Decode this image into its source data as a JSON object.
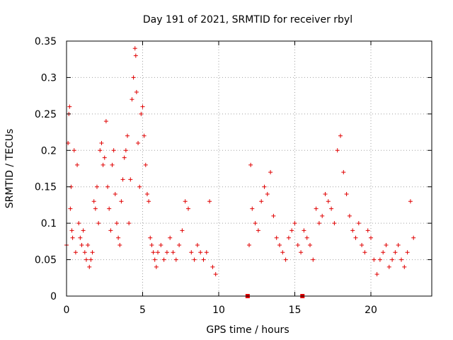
{
  "chart_data": {
    "type": "scatter",
    "title": "Day 191 of 2021, SRMTID for receiver rbyl",
    "xlabel": "GPS time / hours",
    "ylabel": "SRMTID / TECUs",
    "xlim": [
      0,
      24
    ],
    "ylim": [
      0,
      0.35
    ],
    "xticks": [
      0,
      5,
      10,
      15,
      20
    ],
    "xtick_labels": [
      "0",
      "5",
      "10",
      "15",
      "20"
    ],
    "yticks": [
      0,
      0.05,
      0.1,
      0.15,
      0.2,
      0.25,
      0.3,
      0.35
    ],
    "ytick_labels": [
      "0",
      "0.05",
      "0.1",
      "0.15",
      "0.2",
      "0.25",
      "0.3",
      "0.35"
    ],
    "grid": true,
    "marker": "plus",
    "color": "#e00000",
    "zero_markers": [
      {
        "x": 11.9,
        "y": 0
      },
      {
        "x": 15.5,
        "y": 0
      }
    ],
    "series": [
      {
        "name": "SRMTID",
        "x": [
          0.0,
          0.1,
          0.15,
          0.2,
          0.25,
          0.3,
          0.35,
          0.4,
          0.5,
          0.6,
          0.7,
          0.8,
          0.9,
          1.0,
          1.1,
          1.2,
          1.3,
          1.4,
          1.5,
          1.6,
          1.7,
          1.8,
          1.9,
          2.0,
          2.1,
          2.2,
          2.3,
          2.4,
          2.5,
          2.6,
          2.7,
          2.8,
          2.9,
          3.0,
          3.1,
          3.2,
          3.3,
          3.4,
          3.5,
          3.6,
          3.7,
          3.8,
          3.9,
          4.0,
          4.1,
          4.2,
          4.3,
          4.4,
          4.5,
          4.55,
          4.6,
          4.7,
          4.8,
          4.9,
          5.0,
          5.1,
          5.2,
          5.3,
          5.4,
          5.5,
          5.6,
          5.7,
          5.8,
          5.9,
          6.0,
          6.2,
          6.4,
          6.6,
          6.8,
          7.0,
          7.2,
          7.4,
          7.6,
          7.8,
          8.0,
          8.2,
          8.4,
          8.6,
          8.8,
          9.0,
          9.2,
          9.4,
          9.6,
          9.8,
          12.0,
          12.1,
          12.2,
          12.4,
          12.6,
          12.8,
          13.0,
          13.2,
          13.4,
          13.6,
          13.8,
          14.0,
          14.2,
          14.4,
          14.6,
          14.8,
          15.0,
          15.2,
          15.4,
          15.6,
          15.8,
          16.0,
          16.2,
          16.4,
          16.6,
          16.8,
          17.0,
          17.2,
          17.4,
          17.6,
          17.8,
          18.0,
          18.2,
          18.4,
          18.6,
          18.8,
          19.0,
          19.2,
          19.4,
          19.6,
          19.8,
          20.0,
          20.2,
          20.4,
          20.6,
          20.8,
          21.0,
          21.2,
          21.4,
          21.6,
          21.8,
          22.0,
          22.2,
          22.4,
          22.6,
          22.8
        ],
        "y": [
          0.07,
          0.21,
          0.25,
          0.26,
          0.12,
          0.15,
          0.09,
          0.08,
          0.2,
          0.06,
          0.18,
          0.1,
          0.08,
          0.07,
          0.09,
          0.06,
          0.05,
          0.07,
          0.04,
          0.05,
          0.06,
          0.13,
          0.12,
          0.15,
          0.1,
          0.2,
          0.21,
          0.18,
          0.19,
          0.24,
          0.15,
          0.12,
          0.09,
          0.18,
          0.2,
          0.14,
          0.1,
          0.08,
          0.07,
          0.13,
          0.16,
          0.19,
          0.2,
          0.22,
          0.1,
          0.16,
          0.27,
          0.3,
          0.34,
          0.33,
          0.28,
          0.21,
          0.15,
          0.25,
          0.26,
          0.22,
          0.18,
          0.14,
          0.13,
          0.08,
          0.07,
          0.06,
          0.05,
          0.04,
          0.06,
          0.07,
          0.05,
          0.06,
          0.08,
          0.06,
          0.05,
          0.07,
          0.09,
          0.13,
          0.12,
          0.06,
          0.05,
          0.07,
          0.06,
          0.05,
          0.06,
          0.13,
          0.04,
          0.03,
          0.07,
          0.18,
          0.12,
          0.1,
          0.09,
          0.13,
          0.15,
          0.14,
          0.17,
          0.11,
          0.08,
          0.07,
          0.06,
          0.05,
          0.08,
          0.09,
          0.1,
          0.07,
          0.06,
          0.09,
          0.08,
          0.07,
          0.05,
          0.12,
          0.1,
          0.11,
          0.14,
          0.13,
          0.12,
          0.1,
          0.2,
          0.22,
          0.17,
          0.14,
          0.11,
          0.09,
          0.08,
          0.1,
          0.07,
          0.06,
          0.09,
          0.08,
          0.05,
          0.03,
          0.05,
          0.06,
          0.07,
          0.04,
          0.05,
          0.06,
          0.07,
          0.05,
          0.04,
          0.06,
          0.13,
          0.08
        ]
      }
    ]
  }
}
